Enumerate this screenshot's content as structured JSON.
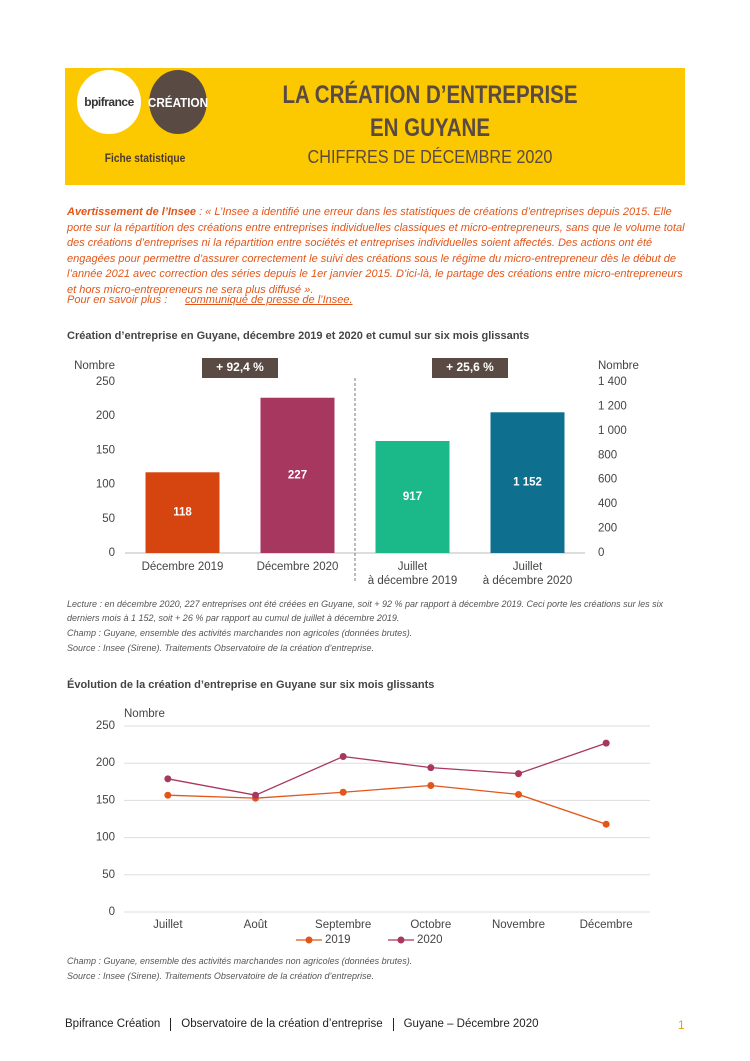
{
  "header": {
    "logo_left": "bpifrance",
    "logo_right": "CRÉATION",
    "label": "Fiche statistique",
    "title_line1": "LA CRÉATION D’ENTREPRISE",
    "title_line2": "EN GUYANE",
    "subtitle": "CHIFFRES DE DÉCEMBRE 2020"
  },
  "warning": {
    "label": "Avertissement de l’Insee",
    "text": " : « L’Insee a identifié une erreur dans les statistiques de créations d’entreprises depuis 2015. Elle porte sur la répartition des créations entre entreprises individuelles classiques et micro-entrepreneurs, sans que le volume total des créations d’entreprises ni la répartition entre sociétés et entreprises individuelles soient affectés. Des actions ont été engagées pour permettre d’assurer correctement le suivi des créations sous le régime du micro-entrepreneur dès le début de l’année 2021 avec correction des séries depuis le 1er janvier 2015. D’ici-là, le partage des créations entre micro-entrepreneurs et hors micro-entrepreneurs ne sera plus diffusé ».",
    "more_label": "Pour en savoir plus :",
    "more_link": "communiqué de presse de l’Insee."
  },
  "chart_data": [
    {
      "type": "bar",
      "title": "Création d’entreprise en Guyane, décembre 2019 et 2020 et cumul sur six mois glissants",
      "categories": [
        "Décembre 2019",
        "Décembre 2020",
        "Juillet\nà décembre 2019",
        "Juillet\nà décembre 2020"
      ],
      "series": [
        {
          "colors": [
            "#d64510",
            "#a8375f",
            null,
            null
          ],
          "values": [
            118,
            227,
            null,
            null
          ]
        },
        {
          "axis": "y2",
          "colors": [
            null,
            null,
            "#1bb88a",
            "#0e6f8e"
          ],
          "values": [
            null,
            null,
            917,
            1152
          ],
          "value_labels": [
            null,
            null,
            "917",
            "1 152"
          ]
        }
      ],
      "annotations": [
        "+ 92,4 %",
        "+ 25,6 %"
      ],
      "ylabel": "Nombre",
      "y2label": "Nombre",
      "ylim": [
        0,
        250
      ],
      "yticks": [
        0,
        50,
        100,
        150,
        200,
        250
      ],
      "y2lim": [
        0,
        1400
      ],
      "y2ticks": [
        0,
        200,
        400,
        600,
        800,
        {
          "value": 1000,
          "label": "1 000"
        },
        {
          "value": 1200,
          "label": "1 200"
        },
        {
          "value": 1400,
          "label": "1 400"
        }
      ],
      "notes": [
        "Lecture : en décembre 2020, 227 entreprises ont été créées en Guyane, soit + 92 % par rapport à décembre 2019. Ceci porte les créations sur les six derniers mois à 1 152, soit + 26 % par rapport au cumul de juillet à décembre 2019.",
        "Champ : Guyane, ensemble des activités marchandes non agricoles (données brutes).",
        "Source : Insee (Sirene). Traitements Observatoire de la création d’entreprise."
      ]
    },
    {
      "type": "line",
      "title": "Évolution de la création d’entreprise en Guyane sur six mois glissants",
      "categories": [
        "Juillet",
        "Août",
        "Septembre",
        "Octobre",
        "Novembre",
        "Décembre"
      ],
      "series": [
        {
          "name": "2019",
          "color": "#e2561a",
          "values": [
            157,
            153,
            161,
            170,
            158,
            118
          ]
        },
        {
          "name": "2020",
          "color": "#a8375f",
          "values": [
            179,
            157,
            209,
            194,
            186,
            227
          ]
        }
      ],
      "ylabel": "Nombre",
      "ylim": [
        0,
        250
      ],
      "yticks": [
        0,
        50,
        100,
        150,
        200,
        250
      ],
      "grid": true,
      "notes": [
        "Champ : Guyane, ensemble des activités marchandes non agricoles (données brutes).",
        "Source : Insee (Sirene). Traitements Observatoire de la création d’entreprise."
      ]
    }
  ],
  "footer": {
    "items": [
      "Bpifrance Création",
      "Observatoire de la création d’entreprise",
      "Guyane – Décembre 2020"
    ],
    "page": "1"
  }
}
